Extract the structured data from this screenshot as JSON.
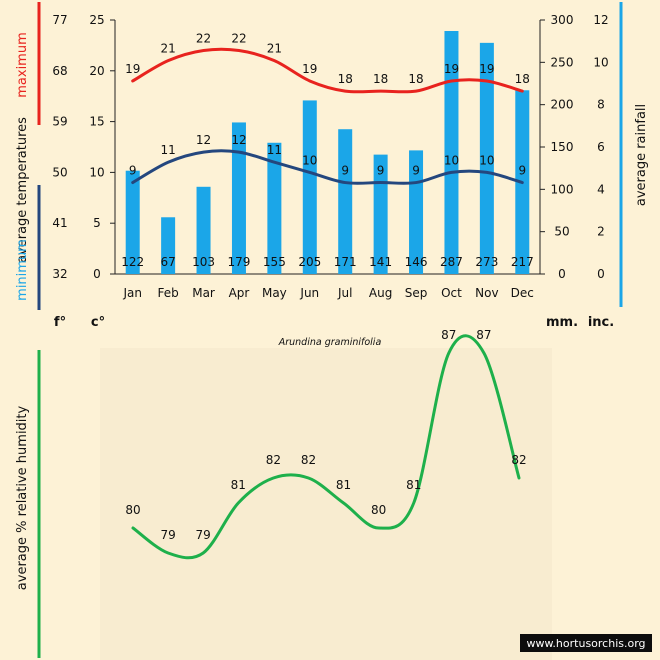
{
  "chart_data": [
    {
      "type": "bar+line",
      "title": "Arundina graminifolia",
      "categories": [
        "Jan",
        "Feb",
        "Mar",
        "Apr",
        "May",
        "Jun",
        "Jul",
        "Aug",
        "Sep",
        "Oct",
        "Nov",
        "Dec"
      ],
      "series": [
        {
          "name": "average rainfall (mm)",
          "kind": "bar",
          "color": "#1ba6e8",
          "values": [
            122,
            67,
            103,
            179,
            155,
            205,
            171,
            141,
            146,
            287,
            273,
            217
          ]
        },
        {
          "name": "maximum",
          "kind": "line",
          "color": "#e8231e",
          "values": [
            19,
            21,
            22,
            22,
            21,
            19,
            18,
            18,
            18,
            19,
            19,
            18
          ]
        },
        {
          "name": "minimum",
          "kind": "line",
          "color": "#24477e",
          "values": [
            9,
            11,
            12,
            12,
            11,
            10,
            9,
            9,
            9,
            10,
            10,
            9
          ]
        }
      ],
      "axes": {
        "fahrenheit": {
          "ticks": [
            "77",
            "68",
            "59",
            "50",
            "41",
            "32"
          ],
          "unit": "f°"
        },
        "celsius": {
          "ticks": [
            "25",
            "20",
            "15",
            "10",
            "5",
            "0"
          ],
          "unit": "c°",
          "ylim": [
            0,
            25
          ]
        },
        "millimetres": {
          "ticks": [
            "300",
            "250",
            "200",
            "150",
            "100",
            "50",
            "0"
          ],
          "unit": "mm.",
          "ylim": [
            0,
            300
          ]
        },
        "inches": {
          "ticks": [
            "12",
            "10",
            "8",
            "6",
            "4",
            "2",
            "0"
          ],
          "unit": "inc."
        }
      },
      "labels": {
        "maximum": "maximum",
        "average_temperatures": "average  temperatures",
        "minimum": "minimum",
        "rainfall": "average rainfall"
      }
    },
    {
      "type": "line",
      "categories": [
        "Jan",
        "Feb",
        "Mar",
        "Apr",
        "May",
        "Jun",
        "Jul",
        "Aug",
        "Sep",
        "Oct",
        "Nov",
        "Dec"
      ],
      "series": [
        {
          "name": "average % relative humidity",
          "color": "#1eb04b",
          "values": [
            80,
            79,
            79,
            81,
            82,
            82,
            81,
            80,
            81,
            87,
            87,
            82
          ]
        }
      ],
      "ylabel": "average %  relative humidity"
    }
  ],
  "watermark": "www.hortusorchis.org",
  "colors": {
    "background": "#fdf2d6",
    "panel": "#f8ecd0",
    "red": "#e8231e",
    "navy": "#24477e",
    "blue": "#1ba6e8",
    "green": "#1eb04b"
  }
}
